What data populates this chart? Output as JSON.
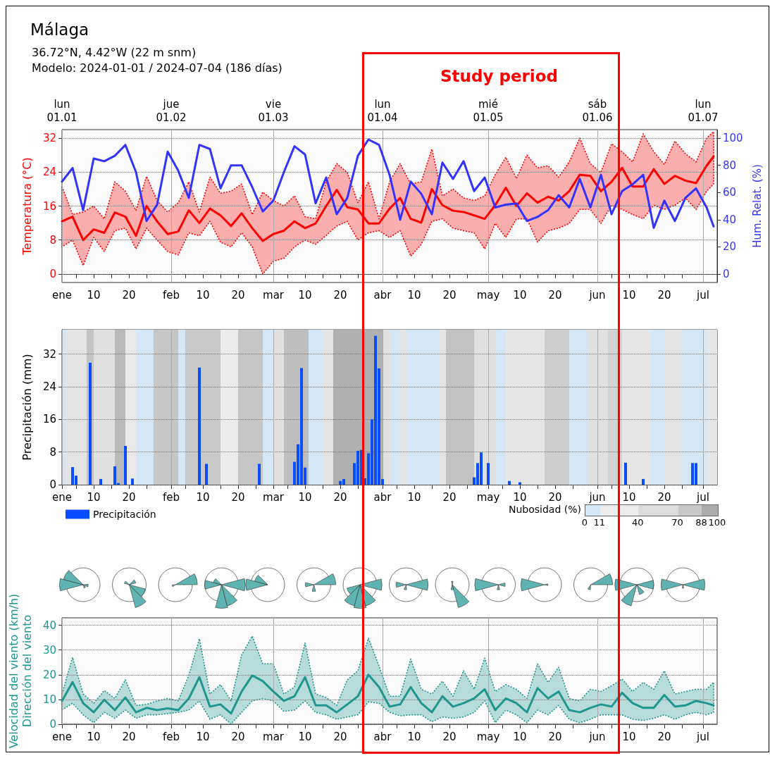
{
  "chart_data": [
    {
      "type": "line",
      "title": "Málaga",
      "subtitle": "36.72°N, 4.42°W (22 m snm)\nModelo: 2024-01-01 / 2024-07-04 (186 días)",
      "annotations": [
        "Study period"
      ],
      "ylabel": "Temperatura (°C)",
      "y2label": "Hum. Relat. (%)",
      "grid": true,
      "xlim": [
        "2024-01-01",
        "2024-07-05"
      ],
      "xticks": [
        {
          "value": "2024-01-01",
          "label": "ene"
        },
        {
          "value": "2024-01-05",
          "label": null
        },
        {
          "value": "2024-01-10",
          "label": "10"
        },
        {
          "value": "2024-01-15",
          "label": null
        },
        {
          "value": "2024-01-20",
          "label": "20"
        },
        {
          "value": "2024-01-25",
          "label": null
        },
        {
          "value": "2024-02-01",
          "label": "feb"
        },
        {
          "value": "2024-02-05",
          "label": null
        },
        {
          "value": "2024-02-10",
          "label": "10"
        },
        {
          "value": "2024-02-15",
          "label": null
        },
        {
          "value": "2024-02-20",
          "label": "20"
        },
        {
          "value": "2024-02-25",
          "label": null
        },
        {
          "value": "2024-03-01",
          "label": "mar"
        },
        {
          "value": "2024-03-05",
          "label": null
        },
        {
          "value": "2024-03-10",
          "label": "10"
        },
        {
          "value": "2024-03-15",
          "label": null
        },
        {
          "value": "2024-03-20",
          "label": "20"
        },
        {
          "value": "2024-03-25",
          "label": null
        },
        {
          "value": "2024-04-01",
          "label": "abr"
        },
        {
          "value": "2024-04-05",
          "label": null
        },
        {
          "value": "2024-04-10",
          "label": "10"
        },
        {
          "value": "2024-04-15",
          "label": null
        },
        {
          "value": "2024-04-20",
          "label": "20"
        },
        {
          "value": "2024-04-25",
          "label": null
        },
        {
          "value": "2024-05-01",
          "label": "may"
        },
        {
          "value": "2024-05-05",
          "label": null
        },
        {
          "value": "2024-05-10",
          "label": "10"
        },
        {
          "value": "2024-05-15",
          "label": null
        },
        {
          "value": "2024-05-20",
          "label": "20"
        },
        {
          "value": "2024-05-25",
          "label": null
        },
        {
          "value": "2024-06-01",
          "label": "jun"
        },
        {
          "value": "2024-06-05",
          "label": null
        },
        {
          "value": "2024-06-10",
          "label": "10"
        },
        {
          "value": "2024-06-15",
          "label": null
        },
        {
          "value": "2024-06-20",
          "label": "20"
        },
        {
          "value": "2024-06-25",
          "label": null
        },
        {
          "value": "2024-07-01",
          "label": "jul"
        }
      ],
      "x2ticks": [
        {
          "value": "2024-01-01",
          "label": "lun\n01.01"
        },
        {
          "value": "2024-02-01",
          "label": "jue\n01.02"
        },
        {
          "value": "2024-03-01",
          "label": "vie\n01.03"
        },
        {
          "value": "2024-04-01",
          "label": "lun\n01.04"
        },
        {
          "value": "2024-05-01",
          "label": "mié\n01.05"
        },
        {
          "value": "2024-06-01",
          "label": "sáb\n01.06"
        },
        {
          "value": "2024-07-01",
          "label": "lun\n01.07"
        }
      ],
      "x2lim": [
        "2024-01-01",
        "2024-07-05"
      ],
      "ylim": [
        -2,
        34
      ],
      "yticks": [
        0,
        8,
        16,
        24,
        32
      ],
      "y2lim": [
        -6.25,
        106.25
      ],
      "y2ticks": [
        0,
        20,
        40,
        60,
        80,
        100
      ],
      "x": [
        "2024-01-01",
        "2024-01-04",
        "2024-01-07",
        "2024-01-10",
        "2024-01-13",
        "2024-01-16",
        "2024-01-19",
        "2024-01-22",
        "2024-01-25",
        "2024-01-28",
        "2024-01-31",
        "2024-02-03",
        "2024-02-06",
        "2024-02-09",
        "2024-02-12",
        "2024-02-15",
        "2024-02-18",
        "2024-02-21",
        "2024-02-24",
        "2024-02-27",
        "2024-03-01",
        "2024-03-04",
        "2024-03-07",
        "2024-03-10",
        "2024-03-13",
        "2024-03-16",
        "2024-03-19",
        "2024-03-22",
        "2024-03-25",
        "2024-03-28",
        "2024-03-31",
        "2024-04-03",
        "2024-04-06",
        "2024-04-09",
        "2024-04-12",
        "2024-04-15",
        "2024-04-18",
        "2024-04-21",
        "2024-04-24",
        "2024-04-27",
        "2024-04-30",
        "2024-05-03",
        "2024-05-06",
        "2024-05-09",
        "2024-05-12",
        "2024-05-15",
        "2024-05-18",
        "2024-05-21",
        "2024-05-24",
        "2024-05-27",
        "2024-05-30",
        "2024-06-02",
        "2024-06-05",
        "2024-06-08",
        "2024-06-11",
        "2024-06-14",
        "2024-06-17",
        "2024-06-20",
        "2024-06-23",
        "2024-06-26",
        "2024-06-29",
        "2024-07-02",
        "2024-07-04"
      ],
      "series": [
        {
          "color": "#ff0000",
          "values": [
            12.4,
            13.5,
            8,
            10.5,
            9.7,
            14.5,
            13.5,
            9,
            16,
            12.4,
            9.4,
            10,
            15,
            12,
            15.4,
            13.8,
            11.3,
            14.3,
            10.8,
            7.8,
            9.4,
            10.2,
            12.4,
            10.8,
            11.9,
            16,
            19.8,
            15.7,
            15.2,
            11.9,
            11.9,
            15.4,
            17.9,
            13,
            12.1,
            20,
            16.2,
            14.9,
            14.6,
            13.8,
            13,
            16.2,
            20.3,
            16,
            19,
            16.8,
            18.2,
            17.3,
            19.5,
            23.4,
            23.1,
            19.5,
            21.7,
            25,
            20.6,
            20.6,
            24.7,
            21.2,
            23.1,
            22,
            21.4,
            25.5,
            27.7
          ],
          "lower": [
            6.4,
            8,
            2,
            8.6,
            5.3,
            10.2,
            10.8,
            5.9,
            10.8,
            8,
            5.3,
            4.5,
            9.7,
            9,
            12.4,
            7.5,
            6.4,
            9.7,
            6.4,
            0,
            3,
            3.7,
            6.4,
            8,
            7,
            9.1,
            11.3,
            12.4,
            8,
            9.7,
            10.2,
            8.6,
            10.2,
            4.2,
            7,
            12.4,
            13,
            10.8,
            10.2,
            9.7,
            5.9,
            11.9,
            8.6,
            13,
            13,
            7.5,
            10.2,
            10.8,
            11.9,
            15.2,
            15.2,
            11.9,
            16.2,
            15.2,
            14,
            13,
            16.2,
            15.2,
            16.2,
            17.9,
            15.2,
            19.5,
            21.2
          ],
          "upper": [
            20.6,
            14,
            14.6,
            16,
            13,
            21.7,
            19.5,
            15,
            23,
            17.3,
            14.6,
            16.8,
            21.7,
            14.6,
            22.8,
            19,
            19.5,
            21.2,
            14,
            19.3,
            17.3,
            16,
            18.4,
            13.5,
            13,
            21.7,
            26,
            23.9,
            16.8,
            21.7,
            13,
            21.7,
            26,
            21.2,
            21.7,
            29.4,
            18.4,
            20,
            17.9,
            17.3,
            18.4,
            23.4,
            27.5,
            22.5,
            28,
            25,
            25.5,
            22.8,
            26.4,
            32,
            26,
            23.9,
            30.7,
            28.8,
            26.4,
            33,
            28.8,
            25.8,
            31.3,
            28.3,
            26.4,
            32,
            33.5
          ]
        },
        {
          "color": "#3333ff",
          "axis": "y2",
          "values": [
            68,
            78,
            47,
            85,
            83,
            87,
            95,
            75,
            39,
            51,
            90,
            76,
            56,
            95,
            92,
            63,
            80,
            80,
            64,
            46,
            54,
            75,
            94,
            88,
            52,
            71,
            44,
            56,
            87,
            99,
            95,
            73,
            40,
            68,
            59,
            44,
            82,
            70,
            83,
            61,
            71,
            49,
            51,
            52,
            39,
            42,
            47,
            58,
            49,
            70,
            49,
            73,
            44,
            61,
            66,
            73,
            34,
            54,
            39,
            56,
            63,
            49,
            35
          ]
        }
      ]
    },
    {
      "type": "bar",
      "ylabel": "Precipitación (mm)",
      "grid": true,
      "legend": "bottom left",
      "clabel": "Nubosidad (%)",
      "cticks": [
        0,
        11,
        40,
        70,
        88,
        100
      ],
      "xlim": [
        "2024-01-01",
        "2024-07-05"
      ],
      "xticks": [
        {
          "value": "2024-01-01",
          "label": "ene"
        },
        {
          "value": "2024-01-05",
          "label": null
        },
        {
          "value": "2024-01-10",
          "label": "10"
        },
        {
          "value": "2024-01-15",
          "label": null
        },
        {
          "value": "2024-01-20",
          "label": "20"
        },
        {
          "value": "2024-01-25",
          "label": null
        },
        {
          "value": "2024-02-01",
          "label": "feb"
        },
        {
          "value": "2024-02-05",
          "label": null
        },
        {
          "value": "2024-02-10",
          "label": "10"
        },
        {
          "value": "2024-02-15",
          "label": null
        },
        {
          "value": "2024-02-20",
          "label": "20"
        },
        {
          "value": "2024-02-25",
          "label": null
        },
        {
          "value": "2024-03-01",
          "label": "mar"
        },
        {
          "value": "2024-03-05",
          "label": null
        },
        {
          "value": "2024-03-10",
          "label": "10"
        },
        {
          "value": "2024-03-15",
          "label": null
        },
        {
          "value": "2024-03-20",
          "label": "20"
        },
        {
          "value": "2024-03-25",
          "label": null
        },
        {
          "value": "2024-04-01",
          "label": "abr"
        },
        {
          "value": "2024-04-05",
          "label": null
        },
        {
          "value": "2024-04-10",
          "label": "10"
        },
        {
          "value": "2024-04-15",
          "label": null
        },
        {
          "value": "2024-04-20",
          "label": "20"
        },
        {
          "value": "2024-04-25",
          "label": null
        },
        {
          "value": "2024-05-01",
          "label": "may"
        },
        {
          "value": "2024-05-05",
          "label": null
        },
        {
          "value": "2024-05-10",
          "label": "10"
        },
        {
          "value": "2024-05-15",
          "label": null
        },
        {
          "value": "2024-05-20",
          "label": "20"
        },
        {
          "value": "2024-05-25",
          "label": null
        },
        {
          "value": "2024-06-01",
          "label": "jun"
        },
        {
          "value": "2024-06-05",
          "label": null
        },
        {
          "value": "2024-06-10",
          "label": "10"
        },
        {
          "value": "2024-06-15",
          "label": null
        },
        {
          "value": "2024-06-20",
          "label": "20"
        },
        {
          "value": "2024-06-25",
          "label": null
        },
        {
          "value": "2024-07-01",
          "label": "jul"
        }
      ],
      "ylim": [
        0,
        38
      ],
      "yticks": [
        0,
        8,
        16,
        24,
        32
      ],
      "bands": [
        {
          "axis": "x",
          "from": "2024-01-01",
          "to": "2024-01-02",
          "color": "#d3e7f6"
        },
        {
          "axis": "x",
          "from": "2024-01-02",
          "to": "2024-01-08",
          "color": "#e4e4e4"
        },
        {
          "axis": "x",
          "from": "2024-01-08",
          "to": "2024-01-10",
          "color": "#c4c4c4"
        },
        {
          "axis": "x",
          "from": "2024-01-10",
          "to": "2024-01-16",
          "color": "#e0e0e0"
        },
        {
          "axis": "x",
          "from": "2024-01-16",
          "to": "2024-01-19",
          "color": "#b9b9b9"
        },
        {
          "axis": "x",
          "from": "2024-01-19",
          "to": "2024-01-22",
          "color": "#e8e8e8"
        },
        {
          "axis": "x",
          "from": "2024-01-22",
          "to": "2024-01-27",
          "color": "#d3e7f6"
        },
        {
          "axis": "x",
          "from": "2024-01-27",
          "to": "2024-02-03",
          "color": "#c6c6c6"
        },
        {
          "axis": "x",
          "from": "2024-02-03",
          "to": "2024-02-05",
          "color": "#d3e7f6"
        },
        {
          "axis": "x",
          "from": "2024-02-05",
          "to": "2024-02-15",
          "color": "#c9c9c9"
        },
        {
          "axis": "x",
          "from": "2024-02-15",
          "to": "2024-02-20",
          "color": "#ebebeb"
        },
        {
          "axis": "x",
          "from": "2024-02-20",
          "to": "2024-02-27",
          "color": "#c6c6c6"
        },
        {
          "axis": "x",
          "from": "2024-02-27",
          "to": "2024-03-01",
          "color": "#d3e7f6"
        },
        {
          "axis": "x",
          "from": "2024-03-01",
          "to": "2024-03-04",
          "color": "#e0e0e0"
        },
        {
          "axis": "x",
          "from": "2024-03-04",
          "to": "2024-03-11",
          "color": "#bebebe"
        },
        {
          "axis": "x",
          "from": "2024-03-11",
          "to": "2024-03-15",
          "color": "#d3e7f6"
        },
        {
          "axis": "x",
          "from": "2024-03-15",
          "to": "2024-03-18",
          "color": "#e4e4e4"
        },
        {
          "axis": "x",
          "from": "2024-03-18",
          "to": "2024-04-01",
          "color": "#b0b0b0"
        },
        {
          "axis": "x",
          "from": "2024-04-01",
          "to": "2024-04-03",
          "color": "#e0e0e0"
        },
        {
          "axis": "x",
          "from": "2024-04-03",
          "to": "2024-04-06",
          "color": "#d3e7f6"
        },
        {
          "axis": "x",
          "from": "2024-04-06",
          "to": "2024-04-08",
          "color": "#e4e4e4"
        },
        {
          "axis": "x",
          "from": "2024-04-08",
          "to": "2024-04-17",
          "color": "#d3e7f6"
        },
        {
          "axis": "x",
          "from": "2024-04-17",
          "to": "2024-04-19",
          "color": "#e4e4e4"
        },
        {
          "axis": "x",
          "from": "2024-04-19",
          "to": "2024-04-27",
          "color": "#c2c2c2"
        },
        {
          "axis": "x",
          "from": "2024-04-27",
          "to": "2024-05-03",
          "color": "#e0e0e0"
        },
        {
          "axis": "x",
          "from": "2024-05-03",
          "to": "2024-05-06",
          "color": "#d3e7f6"
        },
        {
          "axis": "x",
          "from": "2024-05-06",
          "to": "2024-05-17",
          "color": "#e6e6e6"
        },
        {
          "axis": "x",
          "from": "2024-05-17",
          "to": "2024-05-24",
          "color": "#cdcdcd"
        },
        {
          "axis": "x",
          "from": "2024-05-24",
          "to": "2024-05-29",
          "color": "#d3e7f6"
        },
        {
          "axis": "x",
          "from": "2024-05-29",
          "to": "2024-06-04",
          "color": "#e0e0e0"
        },
        {
          "axis": "x",
          "from": "2024-06-04",
          "to": "2024-06-08",
          "color": "#d2d2d2"
        },
        {
          "axis": "x",
          "from": "2024-06-08",
          "to": "2024-06-16",
          "color": "#e6e6e6"
        },
        {
          "axis": "x",
          "from": "2024-06-16",
          "to": "2024-06-20",
          "color": "#d3e7f6"
        },
        {
          "axis": "x",
          "from": "2024-06-20",
          "to": "2024-06-25",
          "color": "#e4e4e4"
        },
        {
          "axis": "x",
          "from": "2024-06-25",
          "to": "2024-07-02",
          "color": "#d3e7f6"
        },
        {
          "axis": "x",
          "from": "2024-07-02",
          "to": "2024-07-05",
          "color": "#e6e6e6"
        }
      ],
      "series": [
        {
          "name": "Precipitación",
          "color": "#0a4dff",
          "x": [
            "2024-01-04",
            "2024-01-05",
            "2024-01-09",
            "2024-01-12",
            "2024-01-16",
            "2024-01-17",
            "2024-01-19",
            "2024-01-21",
            "2024-02-09",
            "2024-02-11",
            "2024-02-26",
            "2024-03-07",
            "2024-03-08",
            "2024-03-09",
            "2024-03-10",
            "2024-03-20",
            "2024-03-21",
            "2024-03-24",
            "2024-03-25",
            "2024-03-26",
            "2024-03-27",
            "2024-03-28",
            "2024-03-29",
            "2024-03-30",
            "2024-03-31",
            "2024-04-01",
            "2024-04-27",
            "2024-04-28",
            "2024-04-29",
            "2024-05-01",
            "2024-05-07",
            "2024-05-10",
            "2024-06-09",
            "2024-06-14",
            "2024-06-28",
            "2024-06-29"
          ],
          "values": [
            4.3,
            2.2,
            29.9,
            1.4,
            4.5,
            0.4,
            9.5,
            1.5,
            28.7,
            5.1,
            5.1,
            5.6,
            9.9,
            28.6,
            4.2,
            0.9,
            1.4,
            5.3,
            8.3,
            8.5,
            1.6,
            7.7,
            16,
            36.5,
            28.5,
            1.4,
            1.8,
            5.3,
            7.9,
            5.3,
            0.9,
            0.6,
            5.4,
            1.4,
            5.3,
            5.3
          ]
        }
      ]
    },
    {
      "type": "line",
      "ylabel": "Velocidad del viento (km/h)\nDirección del viento",
      "grid": true,
      "xlim": [
        "2024-01-01",
        "2024-07-05"
      ],
      "xticks": [
        {
          "value": "2024-01-01",
          "label": "ene"
        },
        {
          "value": "2024-01-05",
          "label": null
        },
        {
          "value": "2024-01-10",
          "label": "10"
        },
        {
          "value": "2024-01-15",
          "label": null
        },
        {
          "value": "2024-01-20",
          "label": "20"
        },
        {
          "value": "2024-01-25",
          "label": null
        },
        {
          "value": "2024-02-01",
          "label": "feb"
        },
        {
          "value": "2024-02-05",
          "label": null
        },
        {
          "value": "2024-02-10",
          "label": "10"
        },
        {
          "value": "2024-02-15",
          "label": null
        },
        {
          "value": "2024-02-20",
          "label": "20"
        },
        {
          "value": "2024-02-25",
          "label": null
        },
        {
          "value": "2024-03-01",
          "label": "mar"
        },
        {
          "value": "2024-03-05",
          "label": null
        },
        {
          "value": "2024-03-10",
          "label": "10"
        },
        {
          "value": "2024-03-15",
          "label": null
        },
        {
          "value": "2024-03-20",
          "label": "20"
        },
        {
          "value": "2024-03-25",
          "label": null
        },
        {
          "value": "2024-04-01",
          "label": "abr"
        },
        {
          "value": "2024-04-05",
          "label": null
        },
        {
          "value": "2024-04-10",
          "label": "10"
        },
        {
          "value": "2024-04-15",
          "label": null
        },
        {
          "value": "2024-04-20",
          "label": "20"
        },
        {
          "value": "2024-04-25",
          "label": null
        },
        {
          "value": "2024-05-01",
          "label": "may"
        },
        {
          "value": "2024-05-05",
          "label": null
        },
        {
          "value": "2024-05-10",
          "label": "10"
        },
        {
          "value": "2024-05-15",
          "label": null
        },
        {
          "value": "2024-05-20",
          "label": "20"
        },
        {
          "value": "2024-05-25",
          "label": null
        },
        {
          "value": "2024-06-01",
          "label": "jun"
        },
        {
          "value": "2024-06-05",
          "label": null
        },
        {
          "value": "2024-06-10",
          "label": "10"
        },
        {
          "value": "2024-06-15",
          "label": null
        },
        {
          "value": "2024-06-20",
          "label": "20"
        },
        {
          "value": "2024-06-25",
          "label": null
        },
        {
          "value": "2024-07-01",
          "label": "jul"
        }
      ],
      "ylim": [
        0,
        43
      ],
      "yticks": [
        0,
        10,
        20,
        30,
        40
      ],
      "x": [
        "2024-01-01",
        "2024-01-04",
        "2024-01-07",
        "2024-01-10",
        "2024-01-13",
        "2024-01-16",
        "2024-01-19",
        "2024-01-22",
        "2024-01-25",
        "2024-01-28",
        "2024-01-31",
        "2024-02-03",
        "2024-02-06",
        "2024-02-09",
        "2024-02-12",
        "2024-02-15",
        "2024-02-18",
        "2024-02-21",
        "2024-02-24",
        "2024-02-27",
        "2024-03-01",
        "2024-03-04",
        "2024-03-07",
        "2024-03-10",
        "2024-03-13",
        "2024-03-16",
        "2024-03-19",
        "2024-03-22",
        "2024-03-25",
        "2024-03-28",
        "2024-03-31",
        "2024-04-03",
        "2024-04-06",
        "2024-04-09",
        "2024-04-12",
        "2024-04-15",
        "2024-04-18",
        "2024-04-21",
        "2024-04-24",
        "2024-04-27",
        "2024-04-30",
        "2024-05-03",
        "2024-05-06",
        "2024-05-09",
        "2024-05-12",
        "2024-05-15",
        "2024-05-18",
        "2024-05-21",
        "2024-05-24",
        "2024-05-27",
        "2024-05-30",
        "2024-06-02",
        "2024-06-05",
        "2024-06-08",
        "2024-06-11",
        "2024-06-14",
        "2024-06-17",
        "2024-06-20",
        "2024-06-23",
        "2024-06-26",
        "2024-06-29",
        "2024-07-02",
        "2024-07-04"
      ],
      "series": [
        {
          "color": "#1f968f",
          "values": [
            9.4,
            17,
            8.5,
            4.8,
            9.9,
            5.7,
            10.8,
            4.8,
            6.6,
            5.7,
            6.4,
            5.7,
            10.4,
            19,
            7.1,
            8,
            4.3,
            13.2,
            19.7,
            17.4,
            13.2,
            9.4,
            11.3,
            19,
            7.6,
            7.6,
            4.8,
            8,
            11.3,
            20,
            15,
            7.1,
            8,
            15,
            8.5,
            4.8,
            11.3,
            7.1,
            8.5,
            10.4,
            14.1,
            5.7,
            10.4,
            8.5,
            4.8,
            14.6,
            10.4,
            13.2,
            5.7,
            4.8,
            6.6,
            8,
            7.1,
            12.7,
            8.5,
            6.6,
            6.6,
            11.8,
            7.1,
            7.6,
            9.4,
            8.5,
            7.6
          ],
          "lower": [
            5.7,
            8.5,
            3.8,
            0.6,
            4.8,
            2.4,
            5.7,
            2.4,
            3.8,
            3.8,
            4.3,
            4.8,
            5.7,
            9.4,
            2,
            3.8,
            0.1,
            4.8,
            9.4,
            10.4,
            9.4,
            5.2,
            5.7,
            9.4,
            4.8,
            3.8,
            2,
            2.9,
            3.8,
            9,
            8.5,
            4.8,
            3.4,
            3.8,
            3.8,
            1,
            2.9,
            2.4,
            2.9,
            4.8,
            9.4,
            0.6,
            5.7,
            3.8,
            0.6,
            5.7,
            3.8,
            7.6,
            2,
            0.6,
            2,
            3.8,
            3.8,
            3.8,
            2,
            1.5,
            2.4,
            3.8,
            2,
            3.8,
            4.8,
            3.8,
            4.8
          ],
          "upper": [
            12.2,
            27,
            12.2,
            8.5,
            13.6,
            10.4,
            17.9,
            7.6,
            8,
            9.4,
            10.4,
            9.4,
            19.7,
            34.5,
            12.2,
            16,
            9.4,
            28,
            35.6,
            24.4,
            24.4,
            12.2,
            15,
            32.8,
            12.2,
            10.8,
            7.6,
            17.9,
            21.6,
            34.7,
            23.5,
            11.3,
            11.3,
            26.3,
            14.1,
            12.2,
            17.4,
            11.3,
            21.6,
            14.1,
            26.7,
            13.2,
            16,
            14.1,
            10.4,
            24.4,
            16.9,
            23,
            10.4,
            9.4,
            14.1,
            13.2,
            15.5,
            18.3,
            13.2,
            16.9,
            14.1,
            21.6,
            12.2,
            13.2,
            14.1,
            14.1,
            16.9
          ]
        }
      ]
    }
  ]
}
